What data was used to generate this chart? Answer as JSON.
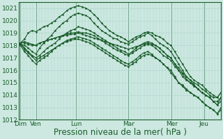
{
  "bg_color": "#cce8e0",
  "grid_color": "#aad4cc",
  "line_color": "#1a5c2a",
  "xlabel": "Pression niveau de la mer( hPa )",
  "xlabel_fontsize": 8.5,
  "tick_fontsize": 6.5,
  "ylim": [
    1012,
    1021.5
  ],
  "yticks": [
    1012,
    1013,
    1014,
    1015,
    1016,
    1017,
    1018,
    1019,
    1020,
    1021
  ],
  "day_labels": [
    "Dim",
    "Ven",
    "Lun",
    "Mar",
    "Mer",
    "Jeu"
  ],
  "day_positions": [
    0,
    20,
    72,
    140,
    196,
    238
  ],
  "xlim": [
    -2,
    260
  ],
  "series": [
    [
      0,
      1018.2,
      5,
      1018.5,
      10,
      1019.0,
      15,
      1019.2,
      20,
      1019.1,
      25,
      1019.3,
      30,
      1019.5,
      35,
      1019.6,
      40,
      1019.8,
      45,
      1020.0,
      50,
      1020.3,
      55,
      1020.5,
      60,
      1020.8,
      65,
      1021.0,
      70,
      1021.1,
      75,
      1021.2,
      80,
      1021.1,
      85,
      1021.0,
      90,
      1020.8,
      95,
      1020.5,
      100,
      1020.2,
      105,
      1019.8,
      110,
      1019.5,
      115,
      1019.2,
      120,
      1019.0,
      125,
      1018.8,
      130,
      1018.7,
      135,
      1018.5,
      140,
      1018.3,
      145,
      1018.5,
      150,
      1018.7,
      155,
      1018.8,
      160,
      1019.0,
      165,
      1019.1,
      170,
      1019.0,
      175,
      1018.8,
      180,
      1018.7,
      185,
      1018.5,
      190,
      1018.2,
      195,
      1018.0,
      200,
      1017.5,
      205,
      1017.0,
      210,
      1016.5,
      215,
      1016.0,
      220,
      1015.5,
      225,
      1015.2,
      230,
      1015.0,
      235,
      1014.8,
      240,
      1014.5,
      245,
      1014.2,
      250,
      1014.0,
      255,
      1013.8,
      260,
      1014.2
    ],
    [
      0,
      1018.1,
      5,
      1018.0,
      10,
      1017.8,
      15,
      1017.5,
      20,
      1017.3,
      25,
      1017.8,
      30,
      1018.2,
      35,
      1018.5,
      40,
      1018.8,
      45,
      1019.2,
      50,
      1019.5,
      55,
      1019.8,
      60,
      1020.0,
      65,
      1020.3,
      70,
      1020.5,
      75,
      1020.6,
      80,
      1020.5,
      85,
      1020.4,
      90,
      1020.2,
      95,
      1019.8,
      100,
      1019.5,
      105,
      1019.2,
      110,
      1019.0,
      115,
      1018.8,
      120,
      1018.6,
      125,
      1018.5,
      130,
      1018.3,
      135,
      1018.2,
      140,
      1018.1,
      145,
      1018.3,
      150,
      1018.5,
      155,
      1018.7,
      160,
      1018.8,
      165,
      1019.0,
      170,
      1018.8,
      175,
      1018.5,
      180,
      1018.2,
      185,
      1018.0,
      190,
      1017.8,
      195,
      1017.5,
      200,
      1017.0,
      205,
      1016.5,
      210,
      1016.0,
      215,
      1015.5,
      220,
      1015.2,
      225,
      1014.8,
      230,
      1014.5,
      235,
      1014.2,
      240,
      1014.0,
      245,
      1013.8,
      250,
      1013.5,
      255,
      1013.2,
      260,
      1013.8
    ],
    [
      0,
      1018.2,
      5,
      1017.8,
      10,
      1017.5,
      15,
      1017.2,
      20,
      1017.0,
      25,
      1017.2,
      30,
      1017.5,
      35,
      1017.8,
      40,
      1018.0,
      45,
      1018.2,
      50,
      1018.5,
      55,
      1018.8,
      60,
      1019.0,
      65,
      1019.2,
      70,
      1019.3,
      75,
      1019.5,
      80,
      1019.4,
      85,
      1019.3,
      90,
      1019.2,
      95,
      1019.0,
      100,
      1018.8,
      105,
      1018.6,
      110,
      1018.4,
      115,
      1018.2,
      120,
      1018.0,
      125,
      1017.8,
      130,
      1017.6,
      135,
      1017.5,
      140,
      1017.3,
      145,
      1017.5,
      150,
      1017.8,
      155,
      1018.0,
      160,
      1018.2,
      165,
      1018.3,
      170,
      1018.2,
      175,
      1018.0,
      180,
      1017.8,
      185,
      1017.5,
      190,
      1017.2,
      195,
      1017.0,
      200,
      1016.5,
      205,
      1016.0,
      210,
      1015.5,
      215,
      1015.2,
      220,
      1015.0,
      225,
      1014.8,
      230,
      1014.5,
      235,
      1014.2,
      240,
      1014.0,
      245,
      1013.8,
      250,
      1013.5,
      255,
      1013.2,
      260,
      1013.5
    ],
    [
      0,
      1018.0,
      5,
      1017.5,
      10,
      1017.2,
      15,
      1016.8,
      20,
      1016.5,
      25,
      1016.8,
      30,
      1017.0,
      35,
      1017.2,
      40,
      1017.5,
      45,
      1017.8,
      50,
      1018.0,
      55,
      1018.2,
      60,
      1018.4,
      65,
      1018.5,
      70,
      1018.6,
      75,
      1018.7,
      80,
      1018.6,
      85,
      1018.5,
      90,
      1018.4,
      95,
      1018.2,
      100,
      1018.0,
      105,
      1017.8,
      110,
      1017.6,
      115,
      1017.4,
      120,
      1017.2,
      125,
      1017.0,
      130,
      1016.8,
      135,
      1016.6,
      140,
      1016.5,
      145,
      1016.7,
      150,
      1016.9,
      155,
      1017.2,
      160,
      1017.4,
      165,
      1017.5,
      170,
      1017.3,
      175,
      1017.0,
      180,
      1016.8,
      185,
      1016.5,
      190,
      1016.2,
      195,
      1016.0,
      200,
      1015.5,
      205,
      1015.0,
      210,
      1014.8,
      215,
      1014.5,
      220,
      1014.2,
      225,
      1014.0,
      230,
      1013.8,
      235,
      1013.5,
      240,
      1013.2,
      245,
      1013.0,
      250,
      1012.8,
      255,
      1012.5,
      260,
      1013.0
    ],
    [
      0,
      1018.1,
      5,
      1017.7,
      10,
      1017.4,
      15,
      1017.1,
      20,
      1016.8,
      25,
      1017.0,
      30,
      1017.2,
      35,
      1017.4,
      40,
      1017.6,
      45,
      1017.8,
      50,
      1018.0,
      55,
      1018.2,
      60,
      1018.3,
      65,
      1018.4,
      70,
      1018.5,
      75,
      1018.5,
      80,
      1018.4,
      85,
      1018.3,
      90,
      1018.2,
      95,
      1018.0,
      100,
      1017.8,
      105,
      1017.6,
      110,
      1017.4,
      115,
      1017.2,
      120,
      1017.0,
      125,
      1016.8,
      130,
      1016.6,
      135,
      1016.4,
      140,
      1016.3,
      145,
      1016.5,
      150,
      1016.7,
      155,
      1017.0,
      160,
      1017.2,
      165,
      1017.3,
      170,
      1017.2,
      175,
      1017.0,
      180,
      1016.8,
      185,
      1016.5,
      190,
      1016.2,
      195,
      1015.8,
      200,
      1015.4,
      205,
      1015.0,
      210,
      1014.7,
      215,
      1014.4,
      220,
      1014.2,
      225,
      1014.0,
      230,
      1013.8,
      235,
      1013.5,
      240,
      1013.2,
      245,
      1013.0,
      250,
      1012.8,
      255,
      1012.5,
      260,
      1012.8
    ],
    [
      0,
      1018.2,
      5,
      1018.2,
      10,
      1018.1,
      15,
      1018.0,
      20,
      1018.0,
      25,
      1018.2,
      30,
      1018.3,
      35,
      1018.4,
      40,
      1018.5,
      45,
      1018.6,
      50,
      1018.7,
      55,
      1018.8,
      60,
      1018.8,
      65,
      1018.9,
      70,
      1018.9,
      75,
      1019.0,
      80,
      1018.9,
      85,
      1018.8,
      90,
      1018.7,
      95,
      1018.6,
      100,
      1018.5,
      105,
      1018.4,
      110,
      1018.3,
      115,
      1018.2,
      120,
      1018.1,
      125,
      1018.0,
      130,
      1017.9,
      135,
      1017.8,
      140,
      1017.7,
      145,
      1017.8,
      150,
      1017.9,
      155,
      1018.0,
      160,
      1018.1,
      165,
      1018.2,
      170,
      1018.1,
      175,
      1018.0,
      180,
      1017.8,
      185,
      1017.5,
      190,
      1017.2,
      195,
      1017.0,
      200,
      1016.5,
      205,
      1016.2,
      210,
      1015.8,
      215,
      1015.5,
      220,
      1015.2,
      225,
      1015.0,
      230,
      1014.8,
      235,
      1014.5,
      240,
      1014.3,
      245,
      1014.0,
      250,
      1013.8,
      255,
      1013.8,
      260,
      1014.2
    ],
    [
      0,
      1018.2,
      5,
      1018.3,
      10,
      1018.2,
      15,
      1018.1,
      20,
      1018.0,
      25,
      1018.2,
      30,
      1018.3,
      35,
      1018.4,
      40,
      1018.5,
      45,
      1018.6,
      50,
      1018.7,
      55,
      1018.8,
      60,
      1018.9,
      65,
      1019.0,
      70,
      1019.0,
      75,
      1019.1,
      80,
      1019.0,
      85,
      1019.0,
      90,
      1018.9,
      95,
      1018.8,
      100,
      1018.6,
      105,
      1018.4,
      110,
      1018.2,
      115,
      1018.0,
      120,
      1017.8,
      125,
      1017.6,
      130,
      1017.5,
      135,
      1017.3,
      140,
      1017.2,
      145,
      1017.4,
      150,
      1017.6,
      155,
      1017.8,
      160,
      1018.0,
      165,
      1018.1,
      170,
      1018.0,
      175,
      1017.8,
      180,
      1017.5,
      185,
      1017.2,
      190,
      1017.0,
      195,
      1016.8,
      200,
      1016.3,
      205,
      1016.0,
      210,
      1015.7,
      215,
      1015.3,
      220,
      1015.0,
      225,
      1014.7,
      230,
      1014.5,
      235,
      1014.2,
      240,
      1014.0,
      245,
      1013.8,
      250,
      1013.5,
      255,
      1013.5,
      260,
      1013.8
    ]
  ]
}
